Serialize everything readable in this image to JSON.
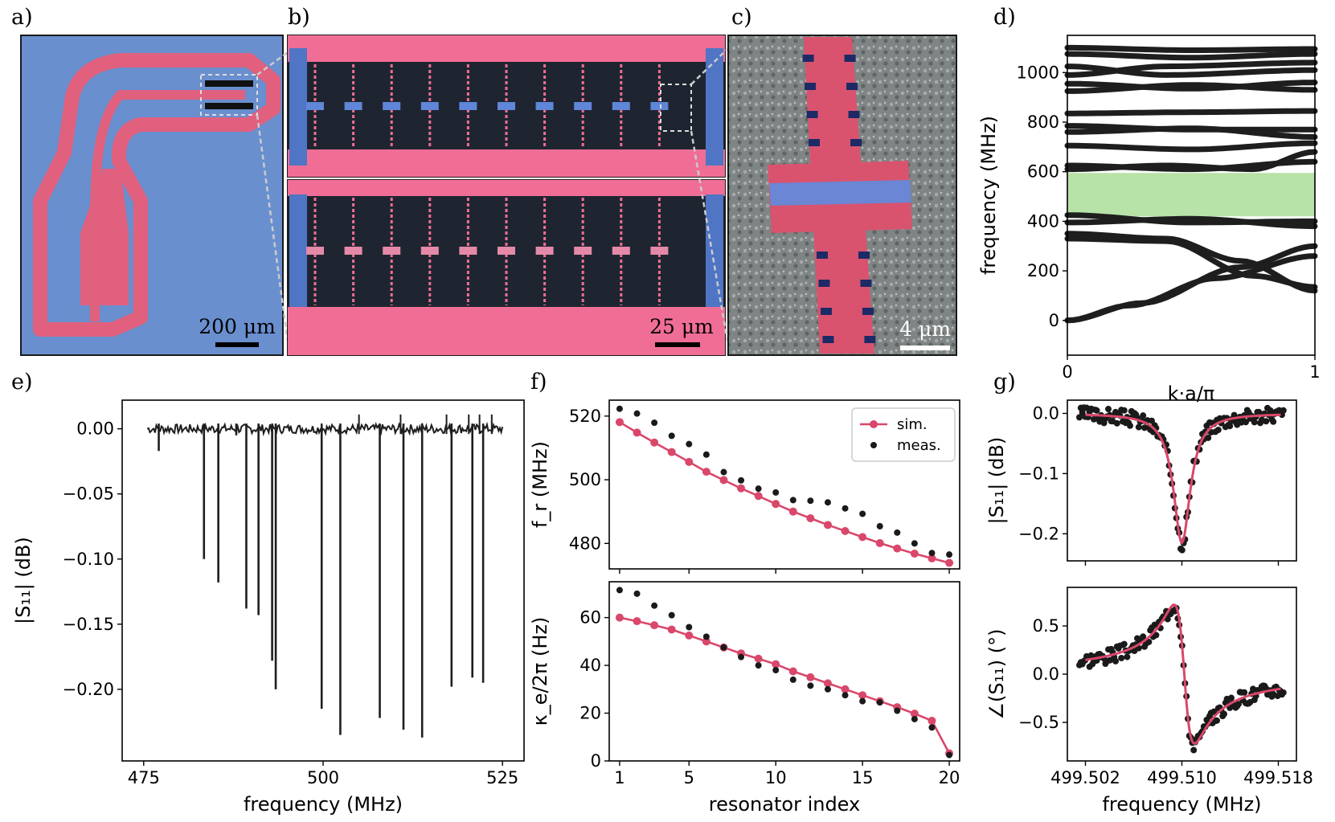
{
  "panels": {
    "a": {
      "label": "a)",
      "scale_bar": "200 μm"
    },
    "b": {
      "label": "b)",
      "scale_bar": "25 μm"
    },
    "c": {
      "label": "c)",
      "scale_bar": "4 μm"
    },
    "d": {
      "label": "d)"
    },
    "e": {
      "label": "e)"
    },
    "f": {
      "label": "f)"
    },
    "g": {
      "label": "g)"
    }
  },
  "colors": {
    "chip_blue": "#6a8fcf",
    "metal_pink": "#e0607e",
    "sim_line": "#d9476a",
    "data_dot": "#1a1a1a",
    "band_gap": "#b7e2a8",
    "dark_bg": "#1f2530",
    "sem_gray": "#8c9090"
  },
  "chart_data": [
    {
      "id": "d",
      "type": "line",
      "xlabel": "k·a/π",
      "ylabel": "frequency (MHz)",
      "xlim": [
        0,
        1
      ],
      "ylim": [
        -140,
        1150
      ],
      "xticks": [
        "0",
        "1"
      ],
      "yticks": [
        "0",
        "200",
        "400",
        "600",
        "800",
        "1000"
      ],
      "band_gap": [
        420,
        595
      ],
      "bands": [
        [
          [
            0,
            0
          ],
          [
            0.3,
            70
          ],
          [
            0.7,
            215
          ],
          [
            1,
            300
          ]
        ],
        [
          [
            0,
            0
          ],
          [
            0.25,
            60
          ],
          [
            0.6,
            170
          ],
          [
            1,
            260
          ]
        ],
        [
          [
            0,
            330
          ],
          [
            0.4,
            320
          ],
          [
            0.75,
            180
          ],
          [
            1,
            135
          ]
        ],
        [
          [
            0,
            350
          ],
          [
            0.4,
            330
          ],
          [
            0.7,
            240
          ],
          [
            1,
            120
          ]
        ],
        [
          [
            0,
            395
          ],
          [
            0.5,
            410
          ],
          [
            1,
            380
          ]
        ],
        [
          [
            0,
            425
          ],
          [
            0.5,
            395
          ],
          [
            1,
            400
          ]
        ],
        [
          [
            0,
            610
          ],
          [
            0.4,
            625
          ],
          [
            0.75,
            610
          ],
          [
            1,
            680
          ]
        ],
        [
          [
            0,
            625
          ],
          [
            0.5,
            610
          ],
          [
            1,
            640
          ]
        ],
        [
          [
            0,
            705
          ],
          [
            0.5,
            690
          ],
          [
            1,
            715
          ]
        ],
        [
          [
            0,
            760
          ],
          [
            0.5,
            775
          ],
          [
            1,
            740
          ]
        ],
        [
          [
            0,
            785
          ],
          [
            0.5,
            770
          ],
          [
            1,
            770
          ]
        ],
        [
          [
            0,
            835
          ],
          [
            0.5,
            840
          ],
          [
            1,
            845
          ]
        ],
        [
          [
            0,
            925
          ],
          [
            0.5,
            950
          ],
          [
            1,
            930
          ]
        ],
        [
          [
            0,
            955
          ],
          [
            0.5,
            935
          ],
          [
            1,
            960
          ]
        ],
        [
          [
            0,
            990
          ],
          [
            0.4,
            1025
          ],
          [
            1,
            1040
          ]
        ],
        [
          [
            0,
            1025
          ],
          [
            0.4,
            990
          ],
          [
            1,
            1010
          ]
        ],
        [
          [
            0,
            1075
          ],
          [
            0.5,
            1060
          ],
          [
            1,
            1075
          ]
        ],
        [
          [
            0,
            1100
          ],
          [
            0.5,
            1090
          ],
          [
            1,
            1095
          ]
        ]
      ]
    },
    {
      "id": "e",
      "type": "line",
      "xlabel": "frequency (MHz)",
      "ylabel": "|S₁₁| (dB)",
      "xlim": [
        472,
        528
      ],
      "ylim": [
        -0.255,
        0.022
      ],
      "xticks": [
        "475",
        "500",
        "525"
      ],
      "yticks": [
        "0.00",
        "−0.05",
        "−0.10",
        "−0.15",
        "−0.20"
      ],
      "resonance_dips": [
        {
          "f": 477.1,
          "depth": -0.017
        },
        {
          "f": 483.4,
          "depth": -0.1
        },
        {
          "f": 485.4,
          "depth": -0.118
        },
        {
          "f": 487.9,
          "depth": -0.005
        },
        {
          "f": 489.3,
          "depth": -0.138
        },
        {
          "f": 491.0,
          "depth": -0.143
        },
        {
          "f": 492.9,
          "depth": -0.178
        },
        {
          "f": 493.4,
          "depth": -0.2
        },
        {
          "f": 499.8,
          "depth": -0.215
        },
        {
          "f": 502.4,
          "depth": -0.235
        },
        {
          "f": 507.9,
          "depth": -0.222
        },
        {
          "f": 511.2,
          "depth": -0.231
        },
        {
          "f": 513.8,
          "depth": -0.237
        },
        {
          "f": 517.9,
          "depth": -0.198
        },
        {
          "f": 520.8,
          "depth": -0.191
        },
        {
          "f": 522.3,
          "depth": -0.195
        }
      ]
    },
    {
      "id": "f-top",
      "type": "line",
      "xlabel": "",
      "ylabel": "f_r (MHz)",
      "xlim": [
        0.4,
        20.6
      ],
      "ylim": [
        472,
        525
      ],
      "yticks": [
        "480",
        "500",
        "520"
      ],
      "legend": [
        "sim.",
        "meas."
      ],
      "x": [
        1,
        2,
        3,
        4,
        5,
        6,
        7,
        8,
        9,
        10,
        11,
        12,
        13,
        14,
        15,
        16,
        17,
        18,
        19,
        20
      ],
      "series": [
        {
          "name": "sim.",
          "values": [
            518.1,
            514.8,
            511.7,
            508.7,
            505.6,
            502.5,
            499.9,
            497.3,
            494.9,
            492.4,
            490.0,
            487.9,
            485.8,
            483.9,
            482.0,
            480.1,
            478.4,
            476.8,
            475.3,
            473.9
          ]
        },
        {
          "name": "meas.",
          "values": [
            522.3,
            520.8,
            517.9,
            513.8,
            511.2,
            507.9,
            502.4,
            499.8,
            497.2,
            496.0,
            493.6,
            493.4,
            492.9,
            491.0,
            489.3,
            485.4,
            483.4,
            480.0,
            477.0,
            476.5
          ]
        }
      ]
    },
    {
      "id": "f-bottom",
      "type": "line",
      "xlabel": "resonator index",
      "ylabel": "κ_e/2π (Hz)",
      "xlim": [
        0.4,
        20.6
      ],
      "ylim": [
        0,
        75
      ],
      "xticks": [
        "1",
        "5",
        "10",
        "15",
        "20"
      ],
      "yticks": [
        "0",
        "20",
        "40",
        "60"
      ],
      "x": [
        1,
        2,
        3,
        4,
        5,
        6,
        7,
        8,
        9,
        10,
        11,
        12,
        13,
        14,
        15,
        16,
        17,
        18,
        19,
        20
      ],
      "series": [
        {
          "name": "sim.",
          "values": [
            60,
            58.5,
            56.8,
            55,
            52.5,
            50,
            47.5,
            45,
            42.8,
            40.5,
            37.5,
            35,
            32.5,
            30,
            27.5,
            25,
            22.5,
            19.8,
            16.8,
            3.2
          ]
        },
        {
          "name": "meas.",
          "values": [
            71.5,
            70,
            65,
            61,
            56,
            52,
            47.5,
            43.5,
            40,
            38,
            34,
            31.5,
            30,
            27.5,
            25,
            24.5,
            21,
            17.5,
            14,
            2.5
          ]
        }
      ]
    },
    {
      "id": "g-top",
      "type": "scatter",
      "xlabel": "",
      "ylabel": "|S₁₁| (dB)",
      "xlim": [
        499.5005,
        499.5195
      ],
      "ylim": [
        -0.245,
        0.022
      ],
      "yticks": [
        "0.0",
        "−0.1",
        "−0.2"
      ],
      "fit": {
        "center": 499.51,
        "depth": -0.215,
        "halfwidth": 0.00085
      }
    },
    {
      "id": "g-bottom",
      "type": "scatter",
      "xlabel": "frequency (MHz)",
      "ylabel": "∠(S₁₁) (°)",
      "xlim": [
        499.5005,
        499.5195
      ],
      "ylim": [
        -0.9,
        0.9
      ],
      "xticks": [
        "499.502",
        "499.510",
        "499.518"
      ],
      "yticks": [
        "0.5",
        "0.0",
        "−0.5"
      ],
      "fit": {
        "center": 499.5102,
        "amplitude": 0.72,
        "halfwidth": 0.00085
      }
    }
  ]
}
